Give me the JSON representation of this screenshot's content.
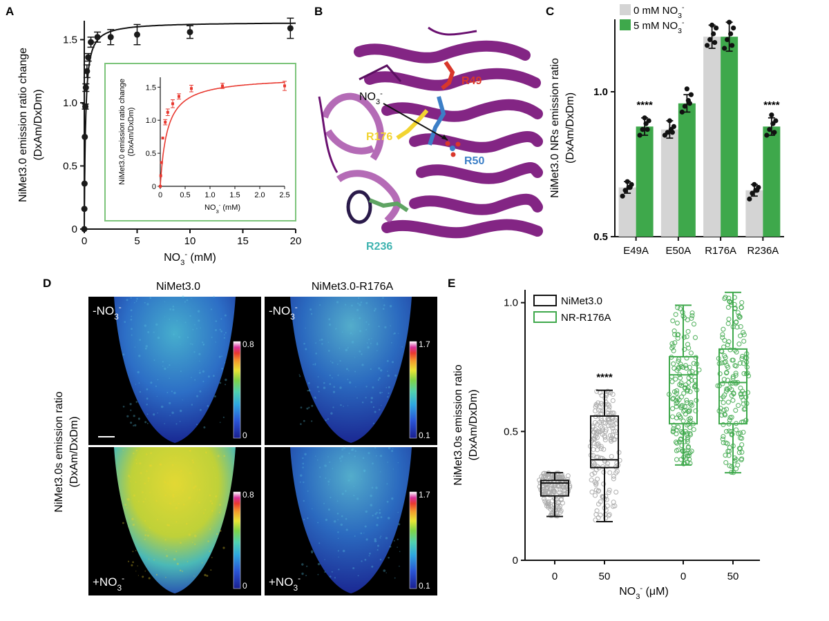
{
  "chart_data": [
    {
      "panel": "A",
      "type": "scatter",
      "ylabel_line1": "NiMet3.0 emission ratio change",
      "ylabel_line2": "(DxAm/DxDm)",
      "xlabel_main": "NO",
      "xlabel_sub": "3",
      "xlabel_sup": "-",
      "xlabel_unit": " (mM)",
      "xlim": [
        0,
        20
      ],
      "ylim": [
        0,
        1.65
      ],
      "xticks": [
        0,
        5,
        10,
        15,
        20
      ],
      "yticks": [
        0,
        0.5,
        1.0,
        1.5
      ],
      "ytick_labels": [
        "0",
        "0.5",
        "1.0",
        "1.5"
      ],
      "color": "#1a1a1a",
      "points": [
        {
          "x": 0,
          "y": 0.0,
          "err": 0.0
        },
        {
          "x": 0.01,
          "y": 0.16,
          "err": 0.0
        },
        {
          "x": 0.025,
          "y": 0.36,
          "err": 0.0
        },
        {
          "x": 0.05,
          "y": 0.73,
          "err": 0.0
        },
        {
          "x": 0.1,
          "y": 0.97,
          "err": 0.02
        },
        {
          "x": 0.15,
          "y": 1.12,
          "err": 0.03
        },
        {
          "x": 0.25,
          "y": 1.25,
          "err": 0.05
        },
        {
          "x": 0.375,
          "y": 1.36,
          "err": 0.03
        },
        {
          "x": 0.625,
          "y": 1.48,
          "err": 0.04
        },
        {
          "x": 1.25,
          "y": 1.52,
          "err": 0.04
        },
        {
          "x": 2.5,
          "y": 1.52,
          "err": 0.06
        },
        {
          "x": 5,
          "y": 1.54,
          "err": 0.08
        },
        {
          "x": 10,
          "y": 1.56,
          "err": 0.05
        },
        {
          "x": 19.5,
          "y": 1.59,
          "err": 0.08
        }
      ],
      "fit": {
        "ymax": 1.64,
        "kd": 0.12
      }
    },
    {
      "panel": "A-inset",
      "type": "scatter",
      "ylabel_line1": "NiMet3.0 emission ratio change",
      "ylabel_line2": "(DxAm/DxDm)",
      "xlabel_main": "NO",
      "xlabel_sub": "3",
      "xlabel_sup": "-",
      "xlabel_unit": " (mM)",
      "xlim": [
        0,
        2.5
      ],
      "ylim": [
        0,
        1.65
      ],
      "xticks": [
        0,
        0.5,
        1.0,
        1.5,
        2.0,
        2.5
      ],
      "xtick_labels": [
        "0",
        "0.5",
        "1.0",
        "1.5",
        "2.0",
        "2.5"
      ],
      "yticks": [
        0,
        0.5,
        1.0,
        1.5
      ],
      "ytick_labels": [
        "0",
        "0.5",
        "1.0",
        "1.5"
      ],
      "color": "#e8382f",
      "border_color": "#7cc47a",
      "points": [
        {
          "x": 0,
          "y": 0.0,
          "err": 0.0
        },
        {
          "x": 0.01,
          "y": 0.16,
          "err": 0.0
        },
        {
          "x": 0.025,
          "y": 0.36,
          "err": 0.0
        },
        {
          "x": 0.05,
          "y": 0.73,
          "err": 0.0
        },
        {
          "x": 0.1,
          "y": 0.97,
          "err": 0.04
        },
        {
          "x": 0.15,
          "y": 1.12,
          "err": 0.05
        },
        {
          "x": 0.25,
          "y": 1.25,
          "err": 0.06
        },
        {
          "x": 0.375,
          "y": 1.36,
          "err": 0.04
        },
        {
          "x": 0.625,
          "y": 1.48,
          "err": 0.05
        },
        {
          "x": 1.25,
          "y": 1.52,
          "err": 0.04
        },
        {
          "x": 2.5,
          "y": 1.52,
          "err": 0.07
        }
      ],
      "fit": {
        "ymax": 1.66,
        "kd": 0.14
      }
    },
    {
      "panel": "C",
      "type": "bar",
      "ylabel_line1": "NiMet3.0 NRs emission ratio",
      "ylabel_line2": "(DxAm/DxDm)",
      "categories": [
        "E49A",
        "E50A",
        "R176A",
        "R236A"
      ],
      "ylim": [
        0.5,
        1.25
      ],
      "yticks": [
        0.5,
        1.0
      ],
      "ytick_labels": [
        "0.5",
        "1.0"
      ],
      "series": [
        {
          "name_main": "0 mM NO",
          "name_sub": "3",
          "name_sup": "-",
          "color": "#d4d4d4",
          "values": [
            0.67,
            0.87,
            1.19,
            0.66
          ],
          "err": [
            0.02,
            0.03,
            0.04,
            0.02
          ],
          "points": [
            [
              0.64,
              0.66,
              0.67,
              0.68,
              0.69,
              0.67
            ],
            [
              0.85,
              0.86,
              0.87,
              0.88,
              0.9,
              0.86
            ],
            [
              1.16,
              1.18,
              1.2,
              1.22,
              1.23,
              1.17
            ],
            [
              0.63,
              0.65,
              0.66,
              0.67,
              0.68,
              0.66
            ]
          ]
        },
        {
          "name_main": "5 mM NO",
          "name_sub": "3",
          "name_sup": "-",
          "color": "#3ea84b",
          "values": [
            0.88,
            0.96,
            1.19,
            0.88
          ],
          "err": [
            0.03,
            0.03,
            0.05,
            0.03
          ],
          "points": [
            [
              0.85,
              0.87,
              0.89,
              0.9,
              0.91,
              0.87
            ],
            [
              0.93,
              0.95,
              0.97,
              0.99,
              1.01,
              0.96
            ],
            [
              1.15,
              1.18,
              1.2,
              1.22,
              1.24,
              1.16
            ],
            [
              0.85,
              0.87,
              0.89,
              0.9,
              0.92,
              0.86
            ]
          ]
        }
      ],
      "annotations": [
        "****",
        "****"
      ],
      "annotation_categories": [
        "E49A",
        "R236A"
      ]
    },
    {
      "panel": "E",
      "type": "box",
      "ylabel_line1": "NiMet3.0s emission ratio",
      "ylabel_line2": "(DxAm/DxDm)",
      "xlabel_main": "NO",
      "xlabel_sub": "3",
      "xlabel_sup": "-",
      "xlabel_unit": " (μM)",
      "ylim": [
        0,
        1.05
      ],
      "yticks": [
        0,
        0.5,
        1.0
      ],
      "ytick_labels": [
        "0",
        "0.5",
        "1.0"
      ],
      "x_tick_labels": [
        "0",
        "50",
        "0",
        "50"
      ],
      "legend": [
        {
          "name": "NiMet3.0",
          "color": "#111111"
        },
        {
          "name": "NR-R176A",
          "color": "#3ea84b"
        }
      ],
      "groups": [
        {
          "series": "NiMet3.0",
          "x_label": "0",
          "min": 0.17,
          "q1": 0.25,
          "median": 0.3,
          "q3": 0.31,
          "max": 0.34,
          "point_color": "#a8a8a8",
          "box_color": "#111111"
        },
        {
          "series": "NiMet3.0",
          "x_label": "50",
          "min": 0.15,
          "q1": 0.36,
          "median": 0.39,
          "q3": 0.56,
          "max": 0.66,
          "point_color": "#a8a8a8",
          "box_color": "#111111"
        },
        {
          "series": "NR-R176A",
          "x_label": "0",
          "min": 0.37,
          "q1": 0.53,
          "median": 0.72,
          "q3": 0.79,
          "max": 0.99,
          "point_color": "#3ea84b",
          "box_color": "#3ea84b"
        },
        {
          "series": "NR-R176A",
          "x_label": "50",
          "min": 0.34,
          "q1": 0.53,
          "median": 0.69,
          "q3": 0.82,
          "max": 1.04,
          "point_color": "#3ea84b",
          "box_color": "#3ea84b"
        }
      ],
      "annotation": "****"
    }
  ],
  "panels": {
    "a_letter": "A",
    "b_letter": "B",
    "c_letter": "C",
    "d_letter": "D",
    "e_letter": "E"
  },
  "structure_b": {
    "ligand_main": "NO",
    "ligand_sub": "3",
    "ligand_sup": "-",
    "residues": [
      {
        "name": "R49",
        "color": "#d9372b"
      },
      {
        "name": "R176",
        "color": "#f2d431"
      },
      {
        "name": "R50",
        "color": "#3c7fc7"
      },
      {
        "name": "R236",
        "color": "#3fb3b0"
      }
    ]
  },
  "imaging_d": {
    "col_titles": [
      "NiMet3.0",
      "NiMet3.0-R176A"
    ],
    "ylabel_line1": "NiMet3.0s emission ratio",
    "ylabel_line2": "(DxAm/DxDm)",
    "minus_label_main": "-NO",
    "plus_label_main": "+NO",
    "label_sub": "3",
    "label_sup": "-",
    "colorbars": [
      {
        "max": "0.8",
        "min": "0"
      },
      {
        "max": "1.7",
        "min": "0.1"
      },
      {
        "max": "0.8",
        "min": "0"
      },
      {
        "max": "1.7",
        "min": "0.1"
      }
    ],
    "signal_levels": [
      {
        "condition": "-NO3-",
        "construct": "NiMet3.0",
        "level": 0.35
      },
      {
        "condition": "-NO3-",
        "construct": "NiMet3.0-R176A",
        "level": 0.3
      },
      {
        "condition": "+NO3-",
        "construct": "NiMet3.0",
        "level": 0.68
      },
      {
        "condition": "+NO3-",
        "construct": "NiMet3.0-R176A",
        "level": 0.3
      }
    ]
  }
}
